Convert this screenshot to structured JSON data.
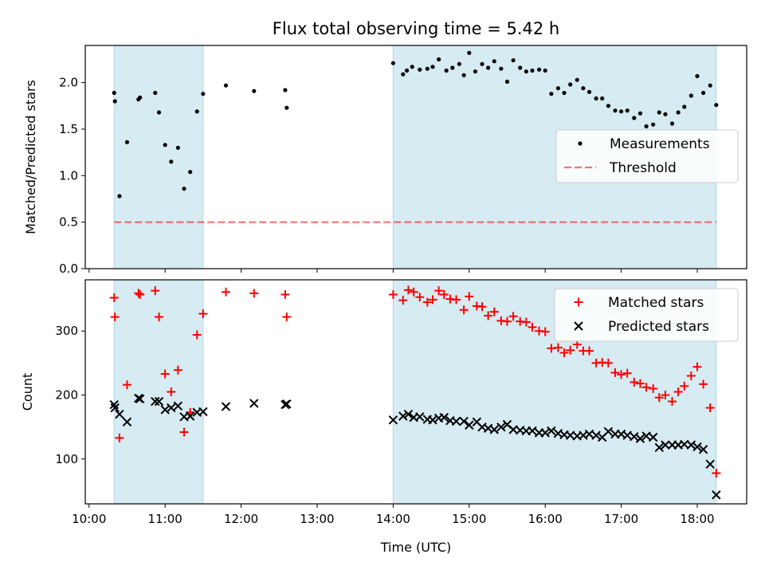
{
  "title": "Flux total observing time = 5.42 h",
  "xlabel": "Time (UTC)",
  "colors": {
    "shade": "#add8e6",
    "threshold": "#ff0000",
    "measurements": "#000000",
    "matched": "#ff0000",
    "predicted": "#000000"
  },
  "chart_data": [
    {
      "type": "scatter",
      "ylabel": "Matched/Predicted stars",
      "xlim": [
        9.95,
        18.65
      ],
      "ylim": [
        0.0,
        2.4
      ],
      "x_ticks": [
        {
          "value": 10,
          "label": "10:00"
        },
        {
          "value": 11,
          "label": "11:00"
        },
        {
          "value": 12,
          "label": "12:00"
        },
        {
          "value": 13,
          "label": "13:00"
        },
        {
          "value": 14,
          "label": "14:00"
        },
        {
          "value": 15,
          "label": "15:00"
        },
        {
          "value": 16,
          "label": "16:00"
        },
        {
          "value": 17,
          "label": "17:00"
        },
        {
          "value": 18,
          "label": "18:00"
        }
      ],
      "x_tick_labels_shown": false,
      "y_ticks": [
        {
          "value": 0.0,
          "label": "0.0"
        },
        {
          "value": 0.5,
          "label": "0.5"
        },
        {
          "value": 1.0,
          "label": "1.0"
        },
        {
          "value": 1.5,
          "label": "1.5"
        },
        {
          "value": 2.0,
          "label": "2.0"
        }
      ],
      "shaded_ranges": [
        [
          10.33,
          11.5
        ],
        [
          14.0,
          18.25
        ]
      ],
      "legend_position": "center-right",
      "threshold": {
        "name": "Threshold",
        "y": 0.5,
        "x_range": [
          10.33,
          18.25
        ]
      },
      "series": [
        {
          "name": "Measurements",
          "marker": "dot",
          "x": [
            10.33,
            10.34,
            10.4,
            10.5,
            10.65,
            10.67,
            10.87,
            10.92,
            11.0,
            11.08,
            11.17,
            11.25,
            11.33,
            11.42,
            11.5,
            11.8,
            12.17,
            12.58,
            12.6,
            14.0,
            14.13,
            14.18,
            14.25,
            14.35,
            14.45,
            14.52,
            14.6,
            14.7,
            14.78,
            14.87,
            14.93,
            15.0,
            15.08,
            15.17,
            15.25,
            15.33,
            15.42,
            15.5,
            15.58,
            15.67,
            15.75,
            15.83,
            15.92,
            16.0,
            16.08,
            16.17,
            16.25,
            16.33,
            16.42,
            16.5,
            16.58,
            16.67,
            16.75,
            16.83,
            16.92,
            17.0,
            17.08,
            17.17,
            17.25,
            17.33,
            17.42,
            17.5,
            17.58,
            17.67,
            17.75,
            17.83,
            17.92,
            18.0,
            18.08,
            18.17,
            18.25
          ],
          "y": [
            1.89,
            1.8,
            0.78,
            1.36,
            1.82,
            1.84,
            1.89,
            1.68,
            1.33,
            1.15,
            1.3,
            0.86,
            1.04,
            1.69,
            1.88,
            1.97,
            1.91,
            1.92,
            1.73,
            2.21,
            2.09,
            2.13,
            2.17,
            2.14,
            2.15,
            2.17,
            2.25,
            2.13,
            2.16,
            2.2,
            2.08,
            2.32,
            2.12,
            2.2,
            2.16,
            2.23,
            2.15,
            2.01,
            2.24,
            2.16,
            2.12,
            2.13,
            2.14,
            2.13,
            1.88,
            1.94,
            1.89,
            1.98,
            2.03,
            1.94,
            1.9,
            1.83,
            1.83,
            1.75,
            1.7,
            1.69,
            1.7,
            1.62,
            1.67,
            1.53,
            1.55,
            1.68,
            1.66,
            1.56,
            1.68,
            1.74,
            1.86,
            2.07,
            1.89,
            1.97,
            1.76
          ]
        }
      ]
    },
    {
      "type": "scatter",
      "ylabel": "Count",
      "xlim": [
        9.95,
        18.65
      ],
      "ylim": [
        30,
        380
      ],
      "x_ticks": [
        {
          "value": 10,
          "label": "10:00"
        },
        {
          "value": 11,
          "label": "11:00"
        },
        {
          "value": 12,
          "label": "12:00"
        },
        {
          "value": 13,
          "label": "13:00"
        },
        {
          "value": 14,
          "label": "14:00"
        },
        {
          "value": 15,
          "label": "15:00"
        },
        {
          "value": 16,
          "label": "16:00"
        },
        {
          "value": 17,
          "label": "17:00"
        },
        {
          "value": 18,
          "label": "18:00"
        }
      ],
      "x_tick_labels_shown": true,
      "y_ticks": [
        {
          "value": 100,
          "label": "100"
        },
        {
          "value": 200,
          "label": "200"
        },
        {
          "value": 300,
          "label": "300"
        }
      ],
      "shaded_ranges": [
        [
          10.33,
          11.5
        ],
        [
          14.0,
          18.25
        ]
      ],
      "legend_position": "top-right",
      "series": [
        {
          "name": "Matched stars",
          "marker": "plus",
          "x": [
            10.33,
            10.34,
            10.4,
            10.5,
            10.65,
            10.67,
            10.87,
            10.92,
            11.0,
            11.08,
            11.17,
            11.25,
            11.33,
            11.42,
            11.5,
            11.8,
            12.17,
            12.58,
            12.6,
            14.0,
            14.13,
            14.2,
            14.27,
            14.35,
            14.45,
            14.52,
            14.6,
            14.67,
            14.75,
            14.83,
            14.93,
            15.0,
            15.1,
            15.17,
            15.25,
            15.33,
            15.42,
            15.5,
            15.58,
            15.67,
            15.75,
            15.83,
            15.92,
            16.0,
            16.08,
            16.17,
            16.25,
            16.33,
            16.42,
            16.5,
            16.58,
            16.67,
            16.75,
            16.83,
            16.92,
            17.0,
            17.08,
            17.17,
            17.25,
            17.33,
            17.42,
            17.5,
            17.58,
            17.67,
            17.75,
            17.83,
            17.92,
            18.0,
            18.08,
            18.17,
            18.25
          ],
          "y": [
            352,
            322,
            133,
            216,
            359,
            357,
            363,
            322,
            233,
            205,
            239,
            142,
            173,
            294,
            327,
            361,
            359,
            357,
            322,
            357,
            348,
            364,
            361,
            353,
            345,
            349,
            363,
            357,
            350,
            349,
            333,
            354,
            339,
            338,
            324,
            330,
            316,
            315,
            323,
            315,
            314,
            306,
            300,
            299,
            273,
            274,
            266,
            270,
            279,
            269,
            269,
            250,
            251,
            250,
            235,
            232,
            234,
            220,
            218,
            212,
            210,
            196,
            200,
            190,
            205,
            214,
            230,
            244,
            217,
            180,
            78
          ]
        },
        {
          "name": "Predicted stars",
          "marker": "x",
          "x": [
            10.33,
            10.34,
            10.4,
            10.5,
            10.65,
            10.67,
            10.87,
            10.92,
            11.0,
            11.08,
            11.17,
            11.25,
            11.33,
            11.42,
            11.5,
            11.8,
            12.17,
            12.58,
            12.6,
            14.0,
            14.13,
            14.2,
            14.27,
            14.35,
            14.45,
            14.52,
            14.6,
            14.67,
            14.75,
            14.83,
            14.93,
            15.0,
            15.1,
            15.17,
            15.25,
            15.33,
            15.42,
            15.5,
            15.58,
            15.67,
            15.75,
            15.83,
            15.92,
            16.0,
            16.08,
            16.17,
            16.25,
            16.33,
            16.42,
            16.5,
            16.58,
            16.67,
            16.75,
            16.83,
            16.92,
            17.0,
            17.08,
            17.17,
            17.25,
            17.33,
            17.42,
            17.5,
            17.58,
            17.67,
            17.75,
            17.83,
            17.92,
            18.0,
            18.08,
            18.17,
            18.25
          ],
          "y": [
            185,
            180,
            170,
            158,
            195,
            194,
            190,
            190,
            177,
            180,
            183,
            166,
            167,
            173,
            174,
            182,
            187,
            185,
            186,
            161,
            167,
            170,
            165,
            166,
            162,
            161,
            164,
            165,
            160,
            159,
            159,
            153,
            158,
            150,
            148,
            146,
            150,
            154,
            146,
            145,
            144,
            144,
            141,
            141,
            144,
            140,
            138,
            137,
            136,
            137,
            139,
            137,
            134,
            143,
            139,
            139,
            137,
            135,
            132,
            136,
            134,
            118,
            122,
            122,
            122,
            123,
            122,
            119,
            115,
            92,
            44
          ]
        }
      ]
    }
  ]
}
